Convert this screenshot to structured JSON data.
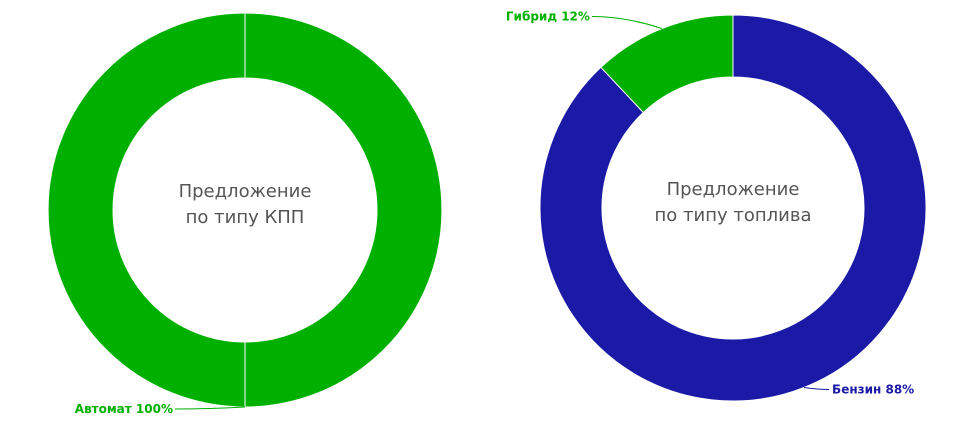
{
  "chart_data": [
    {
      "type": "donut",
      "title": [
        "Предложение",
        "по типу КПП"
      ],
      "categories": [
        "Автомат"
      ],
      "values": [
        100
      ],
      "value_labels": [
        "100%"
      ],
      "colors": [
        "#00b000"
      ]
    },
    {
      "type": "donut",
      "title": [
        "Предложение",
        "по типу топлива"
      ],
      "categories": [
        "Бензин",
        "Гибрид"
      ],
      "values": [
        88,
        12
      ],
      "value_labels": [
        "88%",
        "12%"
      ],
      "colors": [
        "#1a1aa6",
        "#00b000"
      ]
    }
  ]
}
